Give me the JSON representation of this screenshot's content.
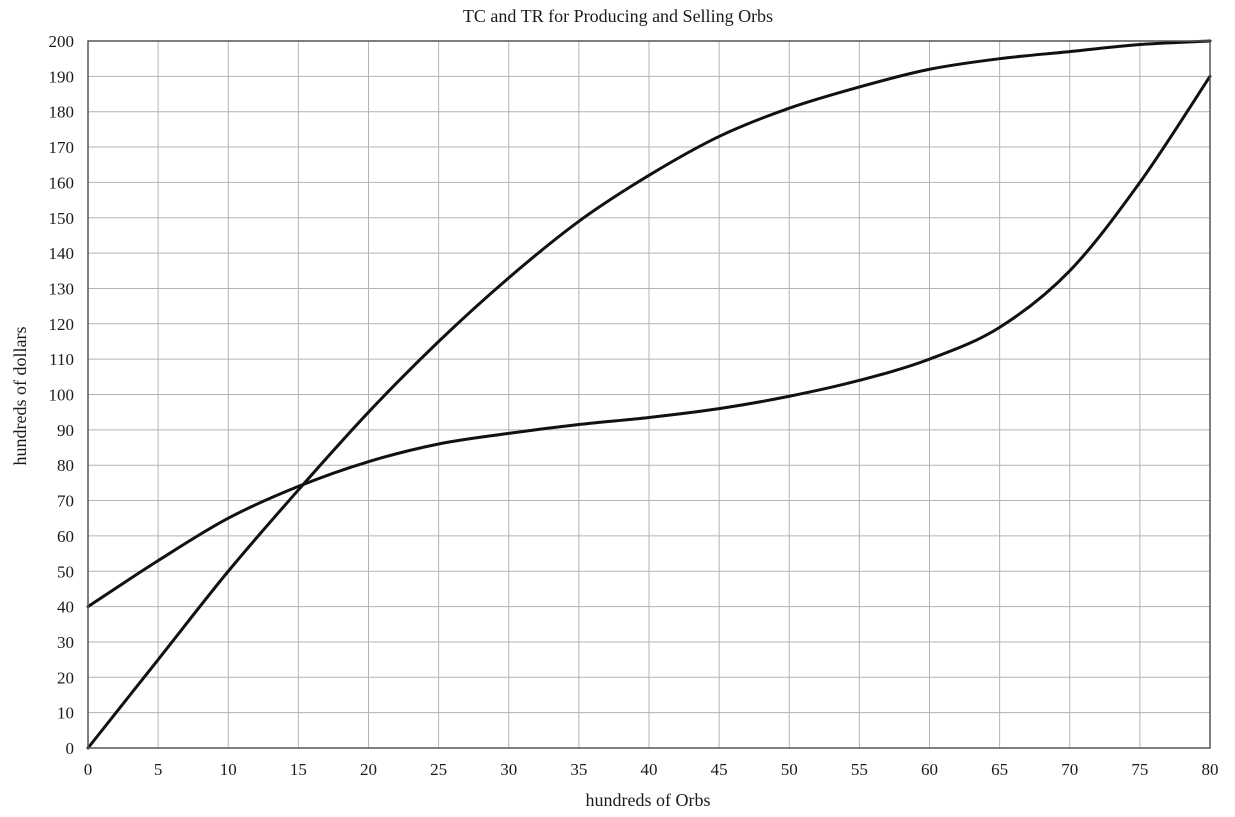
{
  "chart_data": {
    "type": "line",
    "title": "TC and TR for Producing and Selling Orbs",
    "xlabel": "hundreds of Orbs",
    "ylabel": "hundreds of dollars",
    "xlim": [
      0,
      80
    ],
    "ylim": [
      0,
      200
    ],
    "x_ticks": [
      0,
      5,
      10,
      15,
      20,
      25,
      30,
      35,
      40,
      45,
      50,
      55,
      60,
      65,
      70,
      75,
      80
    ],
    "y_ticks": [
      0,
      10,
      20,
      30,
      40,
      50,
      60,
      70,
      80,
      90,
      100,
      110,
      120,
      130,
      140,
      150,
      160,
      170,
      180,
      190,
      200
    ],
    "grid": true,
    "legend": "none",
    "line_color": "#111111",
    "grid_color": "#b3b3b3",
    "series": [
      {
        "x": [
          0,
          5,
          10,
          15,
          20,
          25,
          30,
          35,
          40,
          45,
          50,
          55,
          60,
          65,
          70,
          75,
          80
        ],
        "y": [
          0,
          25,
          50,
          73,
          95,
          115,
          133,
          149,
          162,
          173,
          181,
          187,
          192,
          195,
          197,
          199,
          200
        ]
      },
      {
        "x": [
          0,
          5,
          10,
          15,
          20,
          25,
          30,
          35,
          40,
          45,
          50,
          55,
          60,
          65,
          70,
          75,
          80
        ],
        "y": [
          40,
          53,
          65,
          74,
          81,
          86,
          89,
          91.5,
          93.5,
          96,
          99.5,
          104,
          110,
          119,
          135,
          160,
          190
        ]
      }
    ]
  }
}
